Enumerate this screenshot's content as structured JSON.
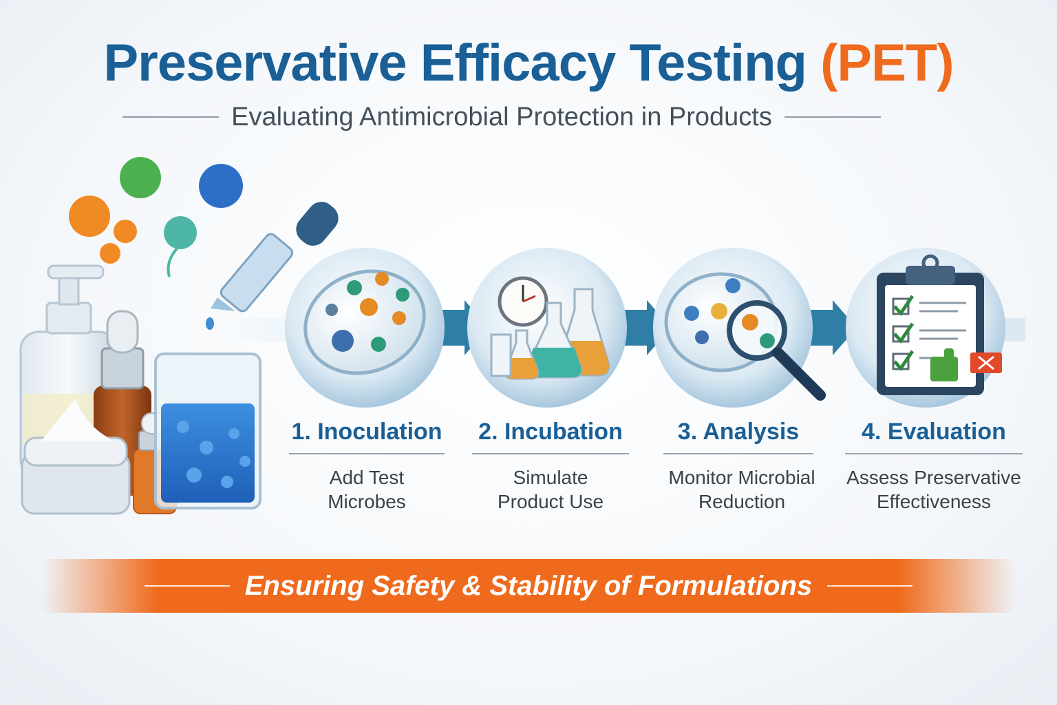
{
  "header": {
    "title_main": "Preservative Efficacy Testing",
    "title_accent": "(PET)",
    "subtitle": "Evaluating Antimicrobial Protection in Products"
  },
  "steps": [
    {
      "title": "1. Inoculation",
      "desc_line1": "Add Test",
      "desc_line2": "Microbes"
    },
    {
      "title": "2. Incubation",
      "desc_line1": "Simulate",
      "desc_line2": "Product Use"
    },
    {
      "title": "3. Analysis",
      "desc_line1": "Monitor Microbial",
      "desc_line2": "Reduction"
    },
    {
      "title": "4. Evaluation",
      "desc_line1": "Assess Preservative",
      "desc_line2": "Effectiveness"
    }
  ],
  "banner": {
    "text": "Ensuring Safety & Stability of Formulations"
  },
  "colors": {
    "title_blue": "#1a5f95",
    "accent_orange": "#ef6a1c",
    "arrow_blue": "#2f7ea6"
  },
  "icons": [
    "microbe-icon",
    "pipette-icon",
    "petri-dish-icon",
    "clock-icon",
    "flask-icon",
    "magnifier-icon",
    "clipboard-icon",
    "checkmark-icon",
    "thumbs-up-icon"
  ]
}
